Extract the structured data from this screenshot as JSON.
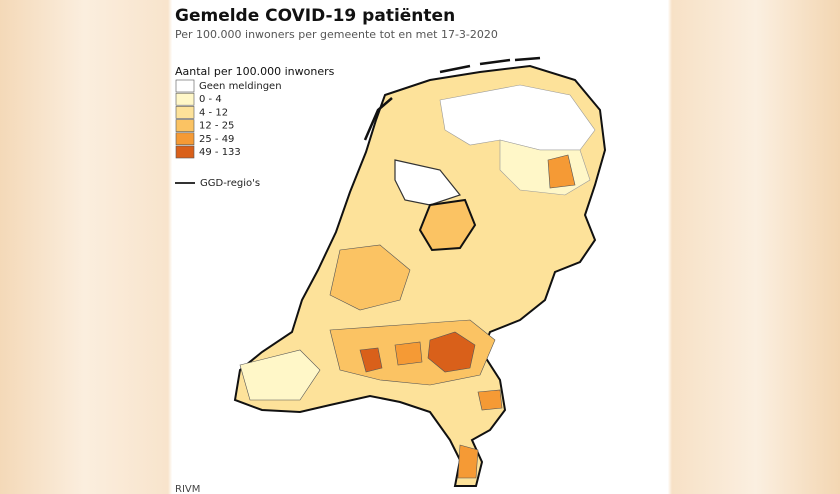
{
  "header": {
    "title": "Gemelde COVID-19 patiënten",
    "subtitle": "Per 100.000 inwoners per gemeente tot en met 17-3-2020"
  },
  "legend": {
    "title": "Aantal per 100.000 inwoners",
    "items": [
      {
        "label": "Geen meldingen",
        "color": "#ffffff"
      },
      {
        "label": "0 - 4",
        "color": "#fff7c8"
      },
      {
        "label": "4 - 12",
        "color": "#fde29a"
      },
      {
        "label": "12 - 25",
        "color": "#fbc363"
      },
      {
        "label": "25 - 49",
        "color": "#f59a35"
      },
      {
        "label": "49 - 133",
        "color": "#d9601a"
      }
    ],
    "border_label": "GGD-regio's"
  },
  "source": "RIVM"
}
